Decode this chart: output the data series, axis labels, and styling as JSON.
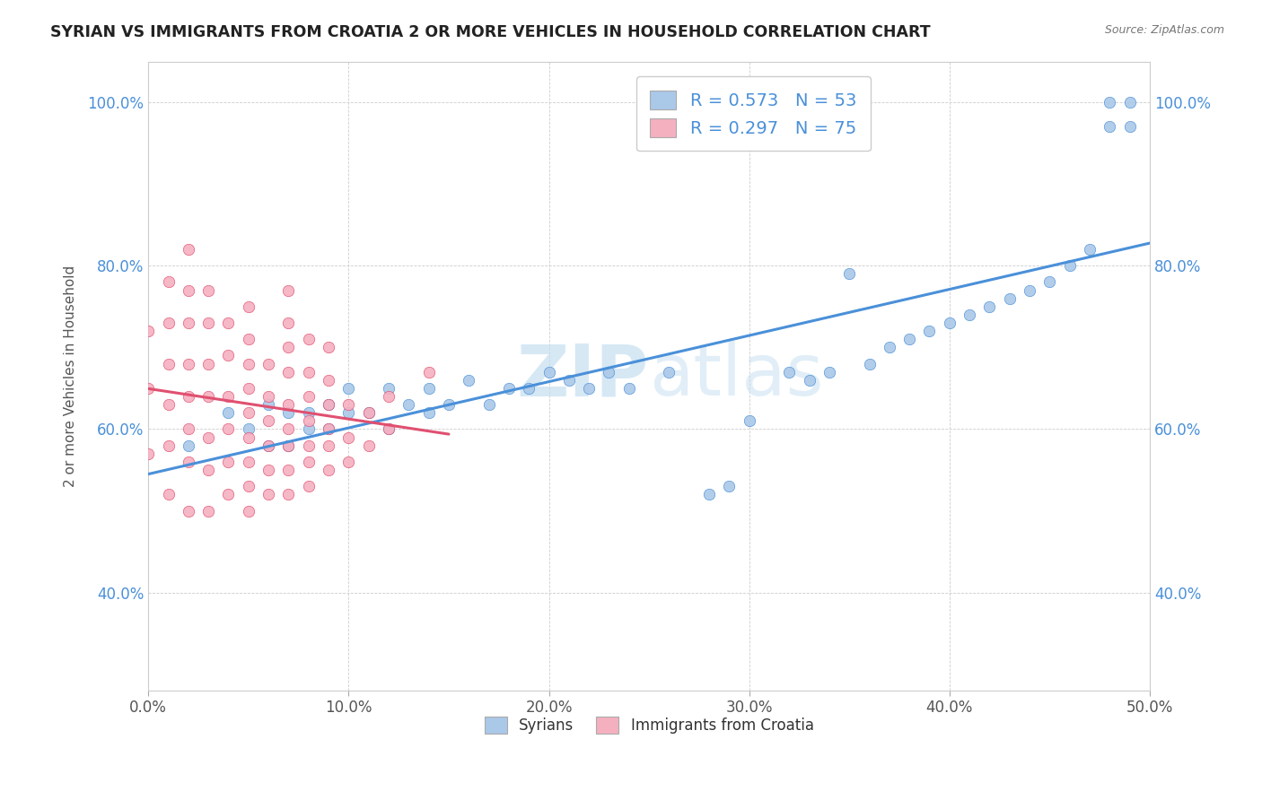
{
  "title": "SYRIAN VS IMMIGRANTS FROM CROATIA 2 OR MORE VEHICLES IN HOUSEHOLD CORRELATION CHART",
  "source": "Source: ZipAtlas.com",
  "xlabel_ticks": [
    "0.0%",
    "10.0%",
    "20.0%",
    "30.0%",
    "40.0%",
    "50.0%"
  ],
  "ylabel_ticks": [
    "40.0%",
    "60.0%",
    "80.0%",
    "100.0%"
  ],
  "ylabel_label": "2 or more Vehicles in Household",
  "legend1_label": "Syrians",
  "legend2_label": "Immigrants from Croatia",
  "R1": 0.573,
  "N1": 53,
  "R2": 0.297,
  "N2": 75,
  "color1": "#aac8e8",
  "color2": "#f5b0c0",
  "line1_color": "#4a90d9",
  "line2_color": "#e05070",
  "xlim": [
    0.0,
    0.5
  ],
  "ylim": [
    0.28,
    1.05
  ],
  "x_tick_vals": [
    0.0,
    0.1,
    0.2,
    0.3,
    0.4,
    0.5
  ],
  "y_tick_vals": [
    0.4,
    0.6,
    0.8,
    1.0
  ],
  "syrians_x": [
    0.02,
    0.04,
    0.05,
    0.06,
    0.06,
    0.07,
    0.07,
    0.08,
    0.08,
    0.09,
    0.09,
    0.1,
    0.1,
    0.11,
    0.12,
    0.12,
    0.13,
    0.14,
    0.14,
    0.15,
    0.16,
    0.17,
    0.18,
    0.19,
    0.2,
    0.21,
    0.22,
    0.23,
    0.24,
    0.26,
    0.28,
    0.29,
    0.3,
    0.32,
    0.33,
    0.34,
    0.35,
    0.36,
    0.37,
    0.38,
    0.39,
    0.4,
    0.41,
    0.42,
    0.43,
    0.44,
    0.45,
    0.46,
    0.47,
    0.48,
    0.48,
    0.49,
    0.49
  ],
  "syrians_y": [
    0.58,
    0.62,
    0.6,
    0.58,
    0.63,
    0.58,
    0.62,
    0.6,
    0.62,
    0.6,
    0.63,
    0.62,
    0.65,
    0.62,
    0.6,
    0.65,
    0.63,
    0.62,
    0.65,
    0.63,
    0.66,
    0.63,
    0.65,
    0.65,
    0.67,
    0.66,
    0.65,
    0.67,
    0.65,
    0.67,
    0.52,
    0.53,
    0.61,
    0.67,
    0.66,
    0.67,
    0.79,
    0.68,
    0.7,
    0.71,
    0.72,
    0.73,
    0.74,
    0.75,
    0.76,
    0.77,
    0.78,
    0.8,
    0.82,
    0.97,
    1.0,
    0.97,
    1.0
  ],
  "croatia_x": [
    0.0,
    0.0,
    0.0,
    0.01,
    0.01,
    0.01,
    0.01,
    0.01,
    0.01,
    0.02,
    0.02,
    0.02,
    0.02,
    0.02,
    0.02,
    0.02,
    0.02,
    0.03,
    0.03,
    0.03,
    0.03,
    0.03,
    0.03,
    0.03,
    0.04,
    0.04,
    0.04,
    0.04,
    0.04,
    0.04,
    0.05,
    0.05,
    0.05,
    0.05,
    0.05,
    0.05,
    0.05,
    0.05,
    0.05,
    0.06,
    0.06,
    0.06,
    0.06,
    0.06,
    0.06,
    0.07,
    0.07,
    0.07,
    0.07,
    0.07,
    0.07,
    0.07,
    0.07,
    0.07,
    0.08,
    0.08,
    0.08,
    0.08,
    0.08,
    0.08,
    0.08,
    0.09,
    0.09,
    0.09,
    0.09,
    0.09,
    0.09,
    0.1,
    0.1,
    0.1,
    0.11,
    0.11,
    0.12,
    0.12,
    0.14
  ],
  "croatia_y": [
    0.57,
    0.65,
    0.72,
    0.52,
    0.58,
    0.63,
    0.68,
    0.73,
    0.78,
    0.5,
    0.56,
    0.6,
    0.64,
    0.68,
    0.73,
    0.77,
    0.82,
    0.5,
    0.55,
    0.59,
    0.64,
    0.68,
    0.73,
    0.77,
    0.52,
    0.56,
    0.6,
    0.64,
    0.69,
    0.73,
    0.5,
    0.53,
    0.56,
    0.59,
    0.62,
    0.65,
    0.68,
    0.71,
    0.75,
    0.52,
    0.55,
    0.58,
    0.61,
    0.64,
    0.68,
    0.52,
    0.55,
    0.58,
    0.6,
    0.63,
    0.67,
    0.7,
    0.73,
    0.77,
    0.53,
    0.56,
    0.58,
    0.61,
    0.64,
    0.67,
    0.71,
    0.55,
    0.58,
    0.6,
    0.63,
    0.66,
    0.7,
    0.56,
    0.59,
    0.63,
    0.58,
    0.62,
    0.6,
    0.64,
    0.67
  ]
}
